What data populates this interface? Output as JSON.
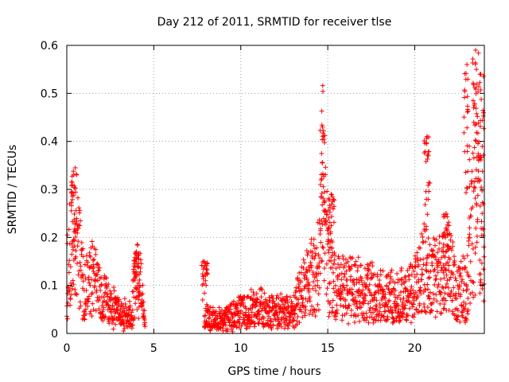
{
  "chart_data": {
    "type": "scatter",
    "title": "Day 212 of 2011, SRMTID for receiver tlse",
    "xlabel": "GPS time / hours",
    "ylabel": "SRMTID / TECUs",
    "xlim": [
      0,
      24
    ],
    "ylim": [
      0,
      0.6
    ],
    "xticks": [
      0,
      5,
      10,
      15,
      20
    ],
    "xtick_labels": [
      "0",
      "5",
      "10",
      "15",
      "20"
    ],
    "yticks": [
      0,
      0.1,
      0.2,
      0.3,
      0.4,
      0.5,
      0.6
    ],
    "ytick_labels": [
      "0",
      "0.1",
      "0.2",
      "0.3",
      "0.4",
      "0.5",
      "0.6"
    ],
    "grid": true,
    "marker": "+",
    "color": "#ff0000",
    "series": [
      {
        "name": "SRMTID",
        "segments": [
          {
            "start": 0.0,
            "end": 4.5,
            "envelope": [
              [
                0.0,
                0.12
              ],
              [
                0.3,
                0.22
              ],
              [
                0.5,
                0.25
              ],
              [
                1.0,
                0.1
              ],
              [
                1.5,
                0.13
              ],
              [
                2.0,
                0.08
              ],
              [
                3.0,
                0.05
              ],
              [
                3.7,
                0.04
              ],
              [
                4.0,
                0.13
              ],
              [
                4.3,
                0.1
              ],
              [
                4.5,
                0.02
              ]
            ]
          },
          {
            "start": 7.9,
            "end": 24.0,
            "envelope": [
              [
                7.9,
                0.04
              ],
              [
                9.0,
                0.03
              ],
              [
                10.0,
                0.05
              ],
              [
                11.0,
                0.06
              ],
              [
                12.0,
                0.05
              ],
              [
                13.0,
                0.05
              ],
              [
                13.5,
                0.1
              ],
              [
                14.0,
                0.12
              ],
              [
                14.5,
                0.16
              ],
              [
                14.7,
                0.35
              ],
              [
                15.0,
                0.16
              ],
              [
                15.5,
                0.1
              ],
              [
                16.0,
                0.11
              ],
              [
                17.0,
                0.1
              ],
              [
                18.0,
                0.09
              ],
              [
                19.0,
                0.08
              ],
              [
                20.0,
                0.1
              ],
              [
                20.5,
                0.15
              ],
              [
                21.0,
                0.13
              ],
              [
                22.0,
                0.14
              ],
              [
                22.5,
                0.1
              ],
              [
                23.0,
                0.1
              ],
              [
                23.4,
                0.3
              ],
              [
                23.7,
                0.35
              ],
              [
                24.0,
                0.1
              ]
            ]
          }
        ],
        "peaks": [
          {
            "x": 0.4,
            "y": 0.33
          },
          {
            "x": 4.0,
            "y": 0.17
          },
          {
            "x": 7.9,
            "y": 0.15
          },
          {
            "x": 14.7,
            "y": 0.43
          },
          {
            "x": 15.2,
            "y": 0.29
          },
          {
            "x": 20.7,
            "y": 0.41
          },
          {
            "x": 21.8,
            "y": 0.25
          },
          {
            "x": 23.0,
            "y": 0.56
          },
          {
            "x": 23.5,
            "y": 0.59
          },
          {
            "x": 23.8,
            "y": 0.54
          }
        ]
      }
    ]
  }
}
